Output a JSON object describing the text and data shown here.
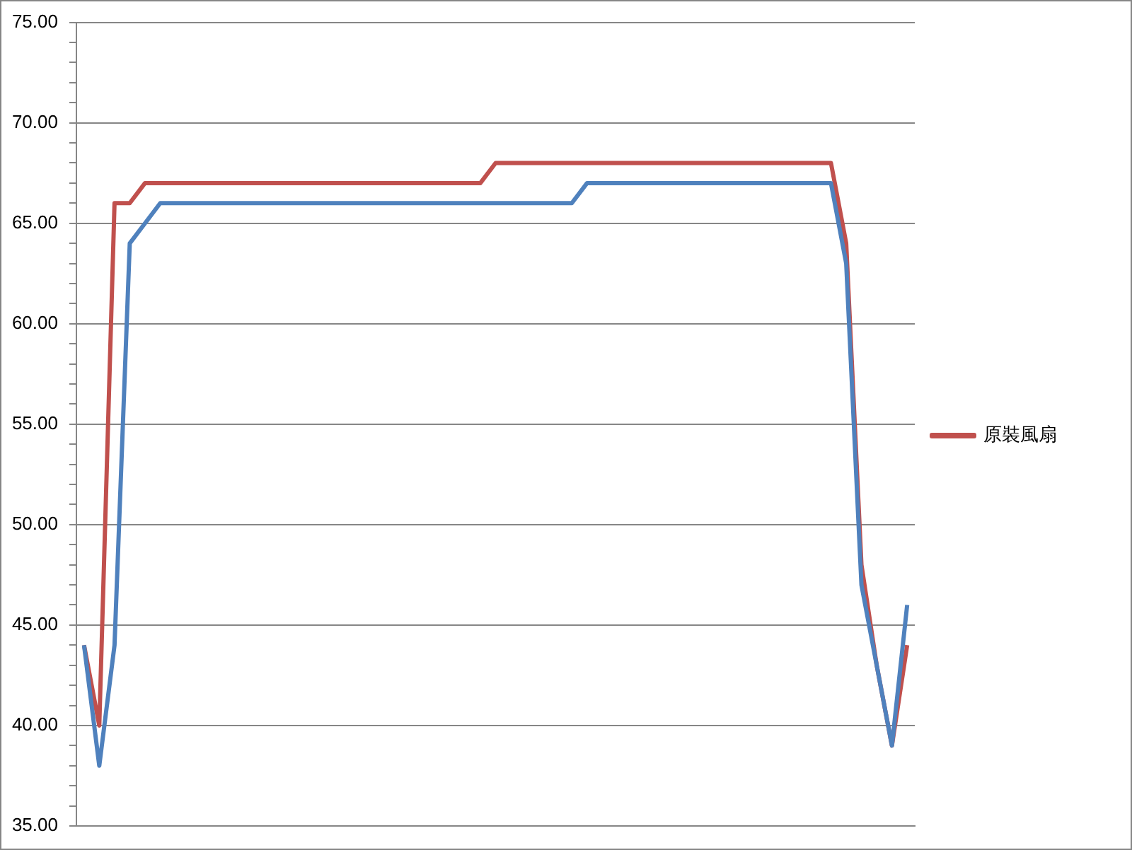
{
  "chart_data": {
    "type": "line",
    "categories": [
      null,
      null,
      null,
      null,
      null,
      null,
      null,
      null,
      null,
      null,
      null,
      null,
      null,
      null,
      null,
      null,
      null,
      null,
      null,
      null,
      null,
      null,
      null,
      null,
      null,
      null,
      null,
      null,
      null,
      null,
      null,
      null,
      null,
      null,
      null,
      null,
      null,
      null,
      null,
      null,
      null,
      null,
      null,
      null,
      null,
      null,
      null,
      null,
      null,
      null,
      null,
      null,
      null,
      null,
      null
    ],
    "series": [
      {
        "name": "原裝風扇",
        "color": "#c0504d",
        "values": [
          44,
          40,
          66,
          66,
          67,
          67,
          67,
          67,
          67,
          67,
          67,
          67,
          67,
          67,
          67,
          67,
          67,
          67,
          67,
          67,
          67,
          67,
          67,
          67,
          67,
          67,
          67,
          68,
          68,
          68,
          68,
          68,
          68,
          68,
          68,
          68,
          68,
          68,
          68,
          68,
          68,
          68,
          68,
          68,
          68,
          68,
          68,
          68,
          68,
          68,
          64,
          48,
          43,
          39,
          44
        ]
      },
      {
        "color": "#4f81bd",
        "values": [
          44,
          38,
          44,
          64,
          65,
          66,
          66,
          66,
          66,
          66,
          66,
          66,
          66,
          66,
          66,
          66,
          66,
          66,
          66,
          66,
          66,
          66,
          66,
          66,
          66,
          66,
          66,
          66,
          66,
          66,
          66,
          66,
          66,
          67,
          67,
          67,
          67,
          67,
          67,
          67,
          67,
          67,
          67,
          67,
          67,
          67,
          67,
          67,
          67,
          67,
          63,
          47,
          43,
          39,
          46
        ]
      }
    ],
    "ylim": [
      35,
      75
    ],
    "yticks": [
      {
        "value": 35,
        "label": "35.00"
      },
      {
        "value": 36,
        "label": null
      },
      {
        "value": 37,
        "label": null
      },
      {
        "value": 38,
        "label": null
      },
      {
        "value": 39,
        "label": null
      },
      {
        "value": 40,
        "label": "40.00"
      },
      {
        "value": 41,
        "label": null
      },
      {
        "value": 42,
        "label": null
      },
      {
        "value": 43,
        "label": null
      },
      {
        "value": 44,
        "label": null
      },
      {
        "value": 45,
        "label": "45.00"
      },
      {
        "value": 46,
        "label": null
      },
      {
        "value": 47,
        "label": null
      },
      {
        "value": 48,
        "label": null
      },
      {
        "value": 49,
        "label": null
      },
      {
        "value": 50,
        "label": "50.00"
      },
      {
        "value": 51,
        "label": null
      },
      {
        "value": 52,
        "label": null
      },
      {
        "value": 53,
        "label": null
      },
      {
        "value": 54,
        "label": null
      },
      {
        "value": 55,
        "label": "55.00"
      },
      {
        "value": 56,
        "label": null
      },
      {
        "value": 57,
        "label": null
      },
      {
        "value": 58,
        "label": null
      },
      {
        "value": 59,
        "label": null
      },
      {
        "value": 60,
        "label": "60.00"
      },
      {
        "value": 61,
        "label": null
      },
      {
        "value": 62,
        "label": null
      },
      {
        "value": 63,
        "label": null
      },
      {
        "value": 64,
        "label": null
      },
      {
        "value": 65,
        "label": "65.00"
      },
      {
        "value": 66,
        "label": null
      },
      {
        "value": 67,
        "label": null
      },
      {
        "value": 68,
        "label": null
      },
      {
        "value": 69,
        "label": null
      },
      {
        "value": 70,
        "label": "70.00"
      },
      {
        "value": 71,
        "label": null
      },
      {
        "value": 72,
        "label": null
      },
      {
        "value": 73,
        "label": null
      },
      {
        "value": 74,
        "label": null
      },
      {
        "value": 75,
        "label": "75.00"
      }
    ],
    "grid": "y",
    "legend": "right",
    "tick_labels": "y",
    "marker": "none"
  }
}
